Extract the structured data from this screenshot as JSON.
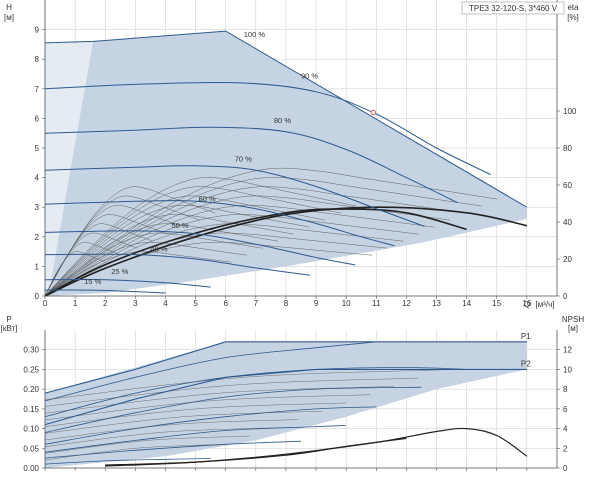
{
  "colors": {
    "background": "#ffffff",
    "grid": "#c8c8c8",
    "axis": "#555555",
    "fill_area": "#c6d3e2",
    "fill_light": "#e4ebf3",
    "curve_blue": "#2c5a8e",
    "curve_dark": "#222222",
    "curve_gray": "#555555",
    "duty_point": "#e06060"
  },
  "chart_data": [
    {
      "id": "head",
      "type": "line",
      "title": "TPE3 32-120-S, 3*460 V",
      "ylabel": "H",
      "yunit": "[м]",
      "y2label": "eta",
      "y2unit": "[%]",
      "xlabel": "Q",
      "xunit": "[м³/ч]",
      "xlim": [
        0,
        17
      ],
      "ylim": [
        0,
        10
      ],
      "y2lim": [
        0,
        160
      ],
      "xticks": [
        0,
        1,
        2,
        3,
        4,
        5,
        6,
        7,
        8,
        9,
        10,
        11,
        12,
        13,
        14,
        15,
        16
      ],
      "yticks": [
        0,
        1,
        2,
        3,
        4,
        5,
        6,
        7,
        8,
        9
      ],
      "y2ticks": [
        0,
        20,
        40,
        60,
        80,
        100
      ],
      "grid": true,
      "operating_area": [
        [
          0,
          8.55
        ],
        [
          1.6,
          8.6
        ],
        [
          6,
          8.95
        ],
        [
          16,
          3.0
        ],
        [
          16,
          2.6
        ],
        [
          12.5,
          1.8
        ],
        [
          8,
          1.0
        ],
        [
          4.5,
          0.45
        ],
        [
          2,
          0.1
        ],
        [
          0,
          0
        ]
      ],
      "speed_curves": [
        {
          "label": "100 %",
          "points": [
            [
              0,
              8.55
            ],
            [
              1.6,
              8.6
            ],
            [
              6,
              8.95
            ],
            [
              16,
              3.0
            ]
          ]
        },
        {
          "label": "90 %",
          "points": [
            [
              0,
              7.0
            ],
            [
              3,
              7.15
            ],
            [
              6.5,
              7.2
            ],
            [
              9,
              6.9
            ],
            [
              11,
              6.15
            ],
            [
              13,
              5.0
            ],
            [
              14.8,
              4.1
            ]
          ]
        },
        {
          "label": "80 %",
          "points": [
            [
              0,
              5.5
            ],
            [
              3,
              5.6
            ],
            [
              5.5,
              5.7
            ],
            [
              8,
              5.55
            ],
            [
              10,
              4.95
            ],
            [
              12,
              4.0
            ],
            [
              13.7,
              3.15
            ]
          ]
        },
        {
          "label": "70 %",
          "points": [
            [
              0,
              4.25
            ],
            [
              3,
              4.35
            ],
            [
              5,
              4.4
            ],
            [
              7,
              4.25
            ],
            [
              9,
              3.7
            ],
            [
              11,
              2.95
            ],
            [
              12.6,
              2.35
            ]
          ]
        },
        {
          "label": "60 %",
          "points": [
            [
              0,
              3.1
            ],
            [
              3,
              3.2
            ],
            [
              5,
              3.2
            ],
            [
              7,
              2.95
            ],
            [
              9,
              2.45
            ],
            [
              10.5,
              2.0
            ],
            [
              11.6,
              1.7
            ]
          ]
        },
        {
          "label": "50 %",
          "points": [
            [
              0,
              2.15
            ],
            [
              3,
              2.2
            ],
            [
              5,
              2.1
            ],
            [
              7,
              1.75
            ],
            [
              9,
              1.3
            ],
            [
              10.3,
              1.05
            ]
          ]
        },
        {
          "label": "40 %",
          "points": [
            [
              0,
              1.4
            ],
            [
              3,
              1.4
            ],
            [
              5,
              1.25
            ],
            [
              7,
              0.95
            ],
            [
              8.8,
              0.7
            ]
          ]
        },
        {
          "label": "25 %",
          "points": [
            [
              0,
              0.55
            ],
            [
              2,
              0.55
            ],
            [
              4,
              0.45
            ],
            [
              5.5,
              0.3
            ]
          ]
        },
        {
          "label": "15 %",
          "points": [
            [
              0,
              0.2
            ],
            [
              1.5,
              0.2
            ],
            [
              3,
              0.15
            ],
            [
              4,
              0.1
            ]
          ]
        }
      ],
      "efficiency_curves": [
        {
          "points": [
            [
              0,
              0
            ],
            [
              2,
              15
            ],
            [
              5,
              32
            ],
            [
              8,
              44
            ],
            [
              11,
              48
            ],
            [
              14,
              45
            ],
            [
              16,
              38
            ]
          ]
        },
        {
          "points": [
            [
              0,
              0
            ],
            [
              2,
              17
            ],
            [
              5,
              34
            ],
            [
              8,
              45
            ],
            [
              10,
              47
            ],
            [
              12,
              45
            ],
            [
              14,
              36
            ]
          ]
        }
      ],
      "duty_point": {
        "q": 10.9,
        "h": 6.2
      },
      "annotations": [
        "100 %",
        "90 %",
        "80 %",
        "70 %",
        "60 %",
        "50 %",
        "40 %",
        "25 %",
        "15 %"
      ]
    },
    {
      "id": "power",
      "type": "line",
      "ylabel": "P",
      "yunit": "[кВт]",
      "y2label": "NPSH",
      "y2unit": "[м]",
      "xlim": [
        0,
        17
      ],
      "ylim": [
        0,
        0.35
      ],
      "y2lim": [
        0,
        14
      ],
      "xticks": [
        0,
        1,
        2,
        3,
        4,
        5,
        6,
        7,
        8,
        9,
        10,
        11,
        12,
        13,
        14,
        15,
        16
      ],
      "yticks": [
        0,
        0.05,
        0.1,
        0.15,
        0.2,
        0.25,
        0.3
      ],
      "ytick_labels": [
        "0.00",
        "0.05",
        "0.10",
        "0.15",
        "0.20",
        "0.25",
        "0.30"
      ],
      "y2ticks": [
        0,
        2,
        4,
        6,
        8,
        10,
        12
      ],
      "grid": true,
      "operating_area": [
        [
          0,
          0.19
        ],
        [
          6,
          0.32
        ],
        [
          16,
          0.32
        ],
        [
          16,
          0.25
        ],
        [
          13,
          0.2
        ],
        [
          10,
          0.13
        ],
        [
          7,
          0.07
        ],
        [
          4,
          0.03
        ],
        [
          0,
          0
        ]
      ],
      "series": [
        {
          "name": "P1",
          "points": [
            [
              0,
              0.19
            ],
            [
              3,
              0.25
            ],
            [
              6,
              0.32
            ],
            [
              10,
              0.32
            ],
            [
              16,
              0.32
            ]
          ]
        },
        {
          "name": "P2",
          "points": [
            [
              0,
              0.11
            ],
            [
              3,
              0.175
            ],
            [
              6,
              0.23
            ],
            [
              9,
              0.25
            ],
            [
              13,
              0.25
            ],
            [
              16,
              0.25
            ]
          ]
        }
      ],
      "power_curves": [
        {
          "points": [
            [
              0,
              0.17
            ],
            [
              3,
              0.23
            ],
            [
              6,
              0.28
            ],
            [
              9,
              0.305
            ],
            [
              11,
              0.32
            ]
          ]
        },
        {
          "points": [
            [
              0,
              0.13
            ],
            [
              3,
              0.19
            ],
            [
              6,
              0.23
            ],
            [
              9,
              0.25
            ],
            [
              12,
              0.255
            ],
            [
              14,
              0.25
            ]
          ]
        },
        {
          "points": [
            [
              0,
              0.09
            ],
            [
              3,
              0.14
            ],
            [
              6,
              0.18
            ],
            [
              9,
              0.2
            ],
            [
              12.5,
              0.205
            ]
          ]
        },
        {
          "points": [
            [
              0,
              0.06
            ],
            [
              3,
              0.1
            ],
            [
              6,
              0.13
            ],
            [
              9,
              0.15
            ],
            [
              11,
              0.155
            ]
          ]
        },
        {
          "points": [
            [
              0,
              0.04
            ],
            [
              3,
              0.07
            ],
            [
              6,
              0.095
            ],
            [
              9,
              0.105
            ],
            [
              10,
              0.108
            ]
          ]
        },
        {
          "points": [
            [
              0,
              0.025
            ],
            [
              3,
              0.045
            ],
            [
              6,
              0.06
            ],
            [
              8.5,
              0.068
            ]
          ]
        },
        {
          "points": [
            [
              0,
              0.01
            ],
            [
              2,
              0.018
            ],
            [
              4,
              0.022
            ],
            [
              5.5,
              0.024
            ]
          ]
        }
      ],
      "npsh_curves": [
        {
          "points": [
            [
              2,
              0.2
            ],
            [
              5,
              0.6
            ],
            [
              8,
              1.4
            ],
            [
              11,
              2.6
            ],
            [
              13,
              3.7
            ],
            [
              14,
              4.0
            ],
            [
              15,
              3.3
            ],
            [
              16,
              1.2
            ]
          ]
        },
        {
          "points": [
            [
              2,
              0.3
            ],
            [
              5,
              0.6
            ],
            [
              8,
              1.3
            ],
            [
              10,
              2.2
            ],
            [
              12,
              3.0
            ]
          ]
        }
      ]
    }
  ]
}
